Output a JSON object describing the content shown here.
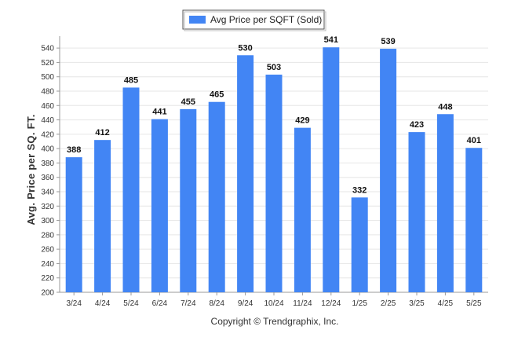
{
  "chart_data": {
    "type": "bar",
    "categories": [
      "3/24",
      "4/24",
      "5/24",
      "6/24",
      "7/24",
      "8/24",
      "9/24",
      "10/24",
      "11/24",
      "12/24",
      "1/25",
      "2/25",
      "3/25",
      "4/25",
      "5/25"
    ],
    "series": [
      {
        "name": "Avg Price per SQFT (Sold)",
        "values": [
          388,
          412,
          485,
          441,
          455,
          465,
          530,
          503,
          429,
          541,
          332,
          539,
          423,
          448,
          401
        ],
        "color": "#4285f4"
      }
    ],
    "ylabel": "Avg. Price per SQ. FT.",
    "xlabel": "",
    "ylim": [
      200,
      550
    ],
    "yticks": [
      200,
      220,
      240,
      260,
      280,
      300,
      320,
      340,
      360,
      380,
      400,
      420,
      440,
      460,
      480,
      500,
      520,
      540
    ],
    "grid": true,
    "legend_position": "top-center",
    "footer": "Copyright © Trendgraphix, Inc."
  }
}
